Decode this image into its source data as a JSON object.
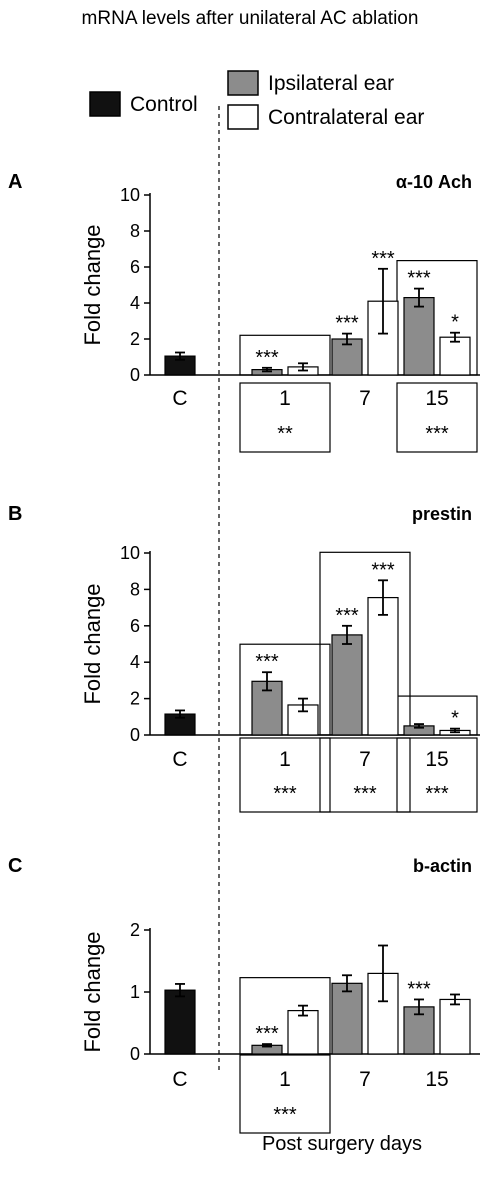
{
  "figure": {
    "title": "mRNA levels after unilateral AC ablation",
    "xlabel": "Post surgery days",
    "legend": {
      "control": "Control",
      "ipsilateral": "Ipsilateral ear",
      "contralateral": "Contralateral ear"
    },
    "colors": {
      "control": "#111111",
      "ipsilateral": "#8c8c8c",
      "contralateral": "#ffffff"
    }
  },
  "chart_data": [
    {
      "type": "bar",
      "panel": "A",
      "title": "α-10 Ach",
      "ylabel": "Fold change",
      "ylim": [
        0,
        10
      ],
      "yticks": [
        0,
        2,
        4,
        6,
        8,
        10
      ],
      "categories": [
        "C",
        "1",
        "7",
        "15"
      ],
      "control": {
        "name": "Control",
        "value": 1.05,
        "error": 0.2
      },
      "series": [
        {
          "name": "Ipsilateral ear",
          "values": [
            null,
            0.3,
            2.0,
            4.3
          ],
          "errors": [
            null,
            0.1,
            0.3,
            0.5
          ],
          "labels": [
            "",
            "***",
            "***",
            "***"
          ]
        },
        {
          "name": "Contralateral ear",
          "values": [
            null,
            0.45,
            4.1,
            2.1
          ],
          "errors": [
            null,
            0.2,
            1.8,
            0.25
          ],
          "labels": [
            "",
            "",
            "***",
            "*"
          ]
        }
      ],
      "boxed_groups": [
        "1",
        "15"
      ],
      "group_significance": {
        "1": "**",
        "7": "",
        "15": "***"
      }
    },
    {
      "type": "bar",
      "panel": "B",
      "title": "prestin",
      "ylabel": "Fold change",
      "ylim": [
        0,
        10
      ],
      "yticks": [
        0,
        2,
        4,
        6,
        8,
        10
      ],
      "categories": [
        "C",
        "1",
        "7",
        "15"
      ],
      "control": {
        "name": "Control",
        "value": 1.15,
        "error": 0.2
      },
      "series": [
        {
          "name": "Ipsilateral ear",
          "values": [
            null,
            2.95,
            5.5,
            0.5
          ],
          "errors": [
            null,
            0.5,
            0.5,
            0.1
          ],
          "labels": [
            "",
            "***",
            "***",
            ""
          ]
        },
        {
          "name": "Contralateral ear",
          "values": [
            null,
            1.65,
            7.55,
            0.25
          ],
          "errors": [
            null,
            0.35,
            0.95,
            0.1
          ],
          "labels": [
            "",
            "",
            "***",
            "*"
          ]
        }
      ],
      "boxed_groups": [
        "1",
        "7",
        "15"
      ],
      "group_significance": {
        "1": "***",
        "7": "***",
        "15": "***"
      }
    },
    {
      "type": "bar",
      "panel": "C",
      "title": "b-actin",
      "ylabel": "Fold change",
      "ylim": [
        0,
        2
      ],
      "yticks": [
        0,
        1,
        2
      ],
      "categories": [
        "C",
        "1",
        "7",
        "15"
      ],
      "control": {
        "name": "Control",
        "value": 1.03,
        "error": 0.1
      },
      "series": [
        {
          "name": "Ipsilateral ear",
          "values": [
            null,
            0.14,
            1.14,
            0.76
          ],
          "errors": [
            null,
            0.02,
            0.13,
            0.12
          ],
          "labels": [
            "",
            "***",
            "",
            "***"
          ]
        },
        {
          "name": "Contralateral ear",
          "values": [
            null,
            0.7,
            1.3,
            0.88
          ],
          "errors": [
            null,
            0.08,
            0.45,
            0.08
          ],
          "labels": [
            "",
            "",
            "",
            ""
          ]
        }
      ],
      "boxed_groups": [
        "1"
      ],
      "group_significance": {
        "1": "***",
        "7": "",
        "15": ""
      }
    }
  ]
}
